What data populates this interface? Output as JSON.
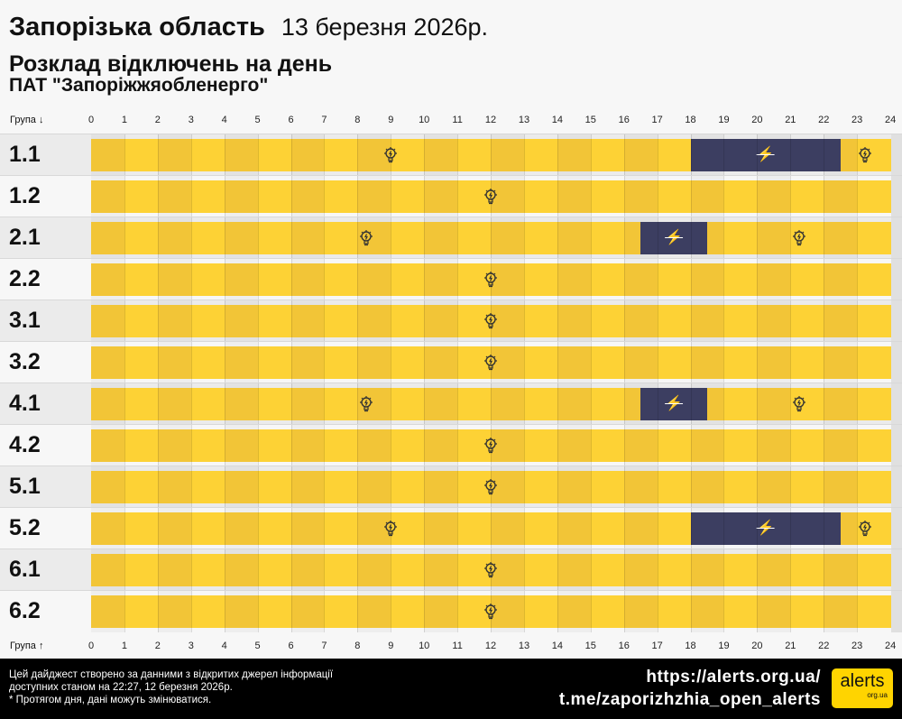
{
  "header": {
    "region": "Запорізька область",
    "date": "13 березня 2026р.",
    "subtitle": "Розклад відключень на день",
    "company": "ПАТ \"Запоріжжяобленерго\""
  },
  "axis": {
    "top_label": "Група ↓",
    "bottom_label": "Група ↑",
    "hours": [
      "0",
      "1",
      "2",
      "3",
      "4",
      "5",
      "6",
      "7",
      "8",
      "9",
      "10",
      "11",
      "12",
      "13",
      "14",
      "15",
      "16",
      "17",
      "18",
      "19",
      "20",
      "21",
      "22",
      "23",
      "24"
    ]
  },
  "colors": {
    "on": "#fdd235",
    "on_dark": "#f2c537",
    "off": "#3c3e61",
    "row_gray": "#ebebeb",
    "row_white": "#f7f7f7"
  },
  "groups": [
    {
      "label": "1.1",
      "outages": [
        [
          18,
          22.5
        ]
      ]
    },
    {
      "label": "1.2",
      "outages": []
    },
    {
      "label": "2.1",
      "outages": [
        [
          16.5,
          18.5
        ]
      ]
    },
    {
      "label": "2.2",
      "outages": []
    },
    {
      "label": "3.1",
      "outages": []
    },
    {
      "label": "3.2",
      "outages": []
    },
    {
      "label": "4.1",
      "outages": [
        [
          16.5,
          18.5
        ]
      ]
    },
    {
      "label": "4.2",
      "outages": []
    },
    {
      "label": "5.1",
      "outages": []
    },
    {
      "label": "5.2",
      "outages": [
        [
          18,
          22.5
        ]
      ]
    },
    {
      "label": "6.1",
      "outages": []
    },
    {
      "label": "6.2",
      "outages": []
    }
  ],
  "footer": {
    "note1": "Цей дайджест створено за данними з відкритих джерел інформації",
    "note2": "доступних станом на 22:27, 12 березня 2026р.",
    "note3": "* Протягом дня, дані можуть змінюватися.",
    "link1": "https://alerts.org.ua/",
    "link2": "t.me/zaporizhzhia_open_alerts",
    "logo_main": "alerts",
    "logo_sub": "org.ua"
  }
}
